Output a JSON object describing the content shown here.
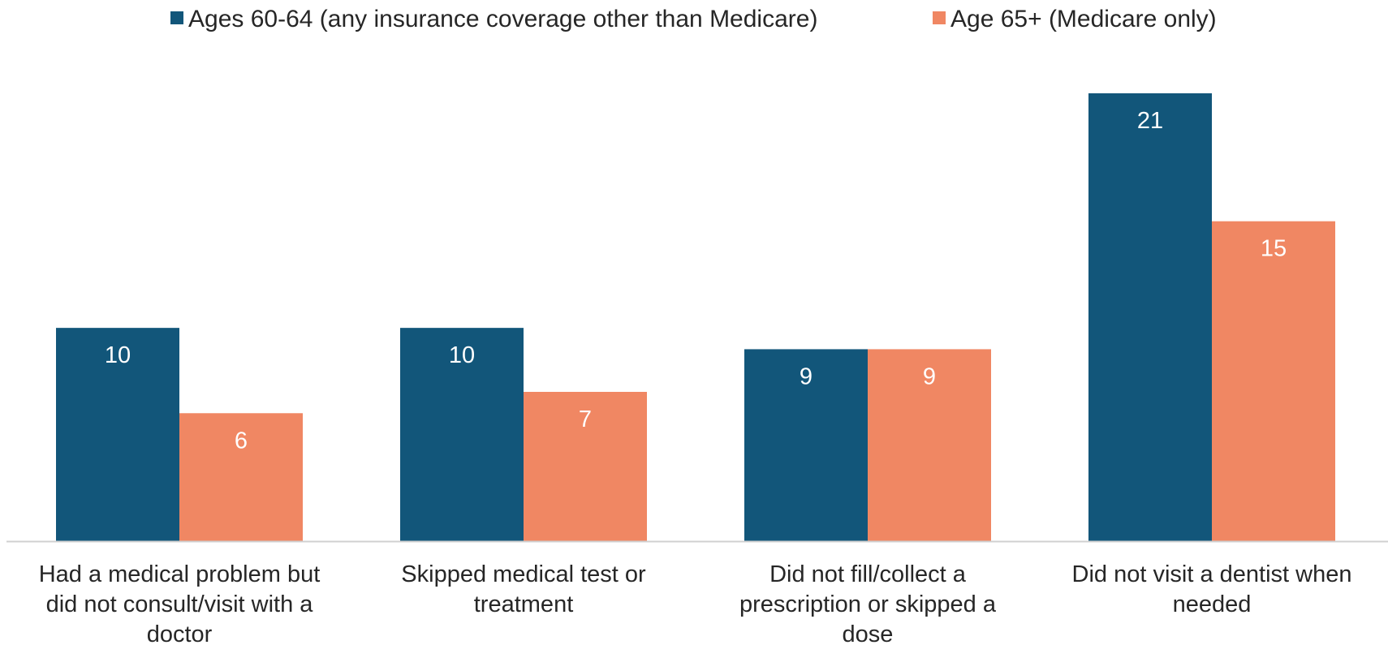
{
  "chart_data": {
    "type": "bar",
    "title": "",
    "xlabel": "",
    "ylabel": "",
    "ylim": [
      0,
      22
    ],
    "grid": false,
    "legend_position": "top-center",
    "categories": [
      [
        "Had a medical problem but",
        "did not consult/visit with a",
        "doctor"
      ],
      [
        "Skipped medical test or",
        "treatment"
      ],
      [
        "Did not fill/collect a",
        "prescription or skipped a",
        "dose"
      ],
      [
        "Did not visit a dentist when",
        "needed"
      ]
    ],
    "series": [
      {
        "name": "Ages 60-64 (any insurance coverage other than Medicare)",
        "color": "#12567a",
        "values": [
          10,
          10,
          9,
          21
        ]
      },
      {
        "name": "Age 65+ (Medicare only)",
        "color": "#f08763",
        "values": [
          6,
          7,
          9,
          15
        ]
      }
    ]
  }
}
